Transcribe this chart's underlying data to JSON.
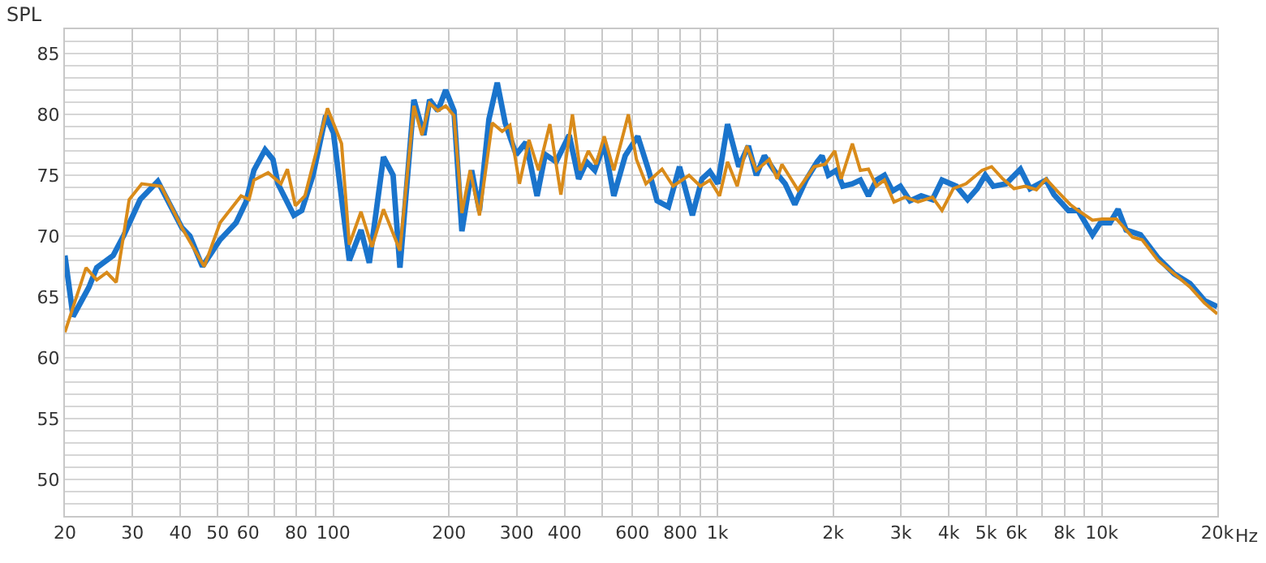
{
  "chart_data": {
    "type": "line",
    "ylabel": "SPL",
    "log": "x",
    "grid": true,
    "marker": "none",
    "line_style": "solid",
    "xlim": [
      20,
      20000
    ],
    "xticks": [
      20,
      30,
      40,
      50,
      60,
      {
        "value": 70,
        "label": null
      },
      80,
      {
        "value": 90,
        "label": null
      },
      100,
      200,
      300,
      400,
      {
        "value": 500,
        "label": null
      },
      600,
      {
        "value": 700,
        "label": null
      },
      800,
      {
        "value": 900,
        "label": null
      },
      {
        "value": 1000,
        "label": "1k"
      },
      {
        "value": 2000,
        "label": "2k"
      },
      {
        "value": 3000,
        "label": "3k"
      },
      {
        "value": 4000,
        "label": "4k"
      },
      {
        "value": 5000,
        "label": "5k"
      },
      {
        "value": 6000,
        "label": "6k"
      },
      {
        "value": 7000,
        "label": null
      },
      {
        "value": 8000,
        "label": "8k"
      },
      {
        "value": 9000,
        "label": null
      },
      {
        "value": 10000,
        "label": "10k"
      },
      {
        "value": 20000,
        "label": "20k"
      }
    ],
    "xlabel": "Hz",
    "ylim": [
      47,
      87
    ],
    "yticks": [
      {
        "value": 48,
        "label": null
      },
      {
        "value": 49,
        "label": null
      },
      50,
      {
        "value": 51,
        "label": null
      },
      {
        "value": 52,
        "label": null
      },
      {
        "value": 53,
        "label": null
      },
      {
        "value": 54,
        "label": null
      },
      55,
      {
        "value": 56,
        "label": null
      },
      {
        "value": 57,
        "label": null
      },
      {
        "value": 58,
        "label": null
      },
      {
        "value": 59,
        "label": null
      },
      60,
      {
        "value": 61,
        "label": null
      },
      {
        "value": 62,
        "label": null
      },
      {
        "value": 63,
        "label": null
      },
      {
        "value": 64,
        "label": null
      },
      65,
      {
        "value": 66,
        "label": null
      },
      {
        "value": 67,
        "label": null
      },
      {
        "value": 68,
        "label": null
      },
      {
        "value": 69,
        "label": null
      },
      70,
      {
        "value": 71,
        "label": null
      },
      {
        "value": 72,
        "label": null
      },
      {
        "value": 73,
        "label": null
      },
      {
        "value": 74,
        "label": null
      },
      75,
      {
        "value": 76,
        "label": null
      },
      {
        "value": 77,
        "label": null
      },
      {
        "value": 78,
        "label": null
      },
      {
        "value": 79,
        "label": null
      },
      80,
      {
        "value": 81,
        "label": null
      },
      {
        "value": 82,
        "label": null
      },
      {
        "value": 83,
        "label": null
      },
      {
        "value": 84,
        "label": null
      },
      85,
      {
        "value": 86,
        "label": null
      },
      {
        "value": 87,
        "label": null
      }
    ],
    "series": [
      {
        "color": "#1a74cc",
        "x": [
          20,
          21.0,
          23.1,
          24.2,
          26.7,
          28.5,
          31.4,
          34.9,
          40.3,
          42.3,
          45.6,
          50.7,
          55.8,
          59.2,
          62.1,
          66.4,
          69.6,
          71.7,
          78.9,
          82.7,
          88.5,
          95.5,
          100,
          110,
          118,
          124,
          135,
          143,
          149,
          162,
          172,
          178,
          187,
          196,
          206,
          216,
          229,
          240,
          254,
          267,
          280,
          299,
          317,
          339,
          356,
          380,
          411,
          435,
          456,
          479,
          507,
          537,
          575,
          620,
          663,
          696,
          745,
          796,
          860,
          911,
          955,
          1002,
          1062,
          1136,
          1203,
          1262,
          1324,
          1403,
          1500,
          1589,
          1699,
          1817,
          1870,
          1943,
          2039,
          2119,
          2244,
          2354,
          2471,
          2593,
          2719,
          2853,
          2992,
          3170,
          3389,
          3626,
          3840,
          4188,
          4477,
          4743,
          4976,
          5220,
          5637,
          6144,
          6510,
          7164,
          7516,
          8196,
          8680,
          9464,
          9931,
          10517,
          11034,
          11577,
          12619,
          14023,
          15435,
          16989,
          18523,
          20000
        ],
        "values": [
          68.4,
          63.4,
          65.8,
          67.4,
          68.4,
          70.1,
          73.0,
          74.5,
          70.7,
          70.0,
          67.5,
          69.7,
          71.1,
          72.8,
          75.4,
          77.1,
          76.3,
          74.3,
          71.7,
          72.1,
          75.0,
          79.9,
          78.5,
          68.0,
          70.5,
          67.8,
          76.5,
          75.0,
          67.4,
          81.2,
          78.3,
          81.2,
          80.3,
          82.0,
          80.3,
          70.4,
          75.4,
          72.1,
          79.6,
          82.6,
          79.3,
          76.7,
          77.7,
          73.3,
          76.7,
          76.1,
          78.3,
          74.7,
          76.1,
          75.4,
          77.6,
          73.3,
          76.6,
          78.2,
          75.3,
          72.9,
          72.4,
          75.7,
          71.7,
          74.7,
          75.3,
          74.3,
          79.2,
          75.7,
          77.4,
          75.0,
          76.6,
          75.4,
          74.3,
          72.6,
          74.6,
          76.1,
          76.6,
          75.0,
          75.4,
          74.1,
          74.3,
          74.6,
          73.3,
          74.6,
          75.0,
          73.7,
          74.1,
          72.9,
          73.3,
          73.0,
          74.6,
          74.1,
          73.0,
          73.9,
          75.0,
          74.1,
          74.3,
          75.5,
          73.9,
          74.6,
          73.4,
          72.1,
          72.1,
          70.1,
          71.1,
          71.1,
          72.2,
          70.5,
          70.1,
          68.2,
          66.9,
          66.1,
          64.7,
          64.2
        ]
      },
      {
        "color": "#d98b1a",
        "x": [
          20,
          22.7,
          24.2,
          25.7,
          27.2,
          29.4,
          31.7,
          35.6,
          40.3,
          46.1,
          50.7,
          57.5,
          60.3,
          62.1,
          67.6,
          73.0,
          75.9,
          79.6,
          84.3,
          96.5,
          105,
          110,
          118,
          126,
          135,
          149,
          162,
          170,
          178,
          187,
          196,
          206,
          216,
          227,
          240,
          259,
          275,
          288,
          305,
          323,
          342,
          366,
          391,
          419,
          439,
          461,
          483,
          507,
          537,
          586,
          615,
          651,
          717,
          766,
          843,
          902,
          955,
          1012,
          1062,
          1125,
          1191,
          1262,
          1363,
          1430,
          1471,
          1619,
          1783,
          1906,
          2019,
          2098,
          2244,
          2354,
          2471,
          2593,
          2719,
          2880,
          3080,
          3326,
          3626,
          3840,
          4108,
          4434,
          4882,
          5170,
          5530,
          5913,
          6325,
          6764,
          7164,
          7663,
          8276,
          8680,
          9464,
          10024,
          10929,
          12030,
          12742,
          14023,
          15435,
          16989,
          18523,
          20000
        ],
        "values": [
          62.1,
          67.4,
          66.4,
          67.0,
          66.2,
          73.0,
          74.3,
          74.1,
          70.7,
          67.5,
          71.1,
          73.3,
          73.0,
          74.6,
          75.2,
          74.3,
          75.5,
          72.5,
          73.3,
          80.5,
          77.6,
          69.3,
          72.0,
          69.1,
          72.2,
          68.8,
          80.7,
          78.3,
          80.9,
          80.3,
          80.7,
          79.9,
          71.9,
          75.4,
          71.7,
          79.3,
          78.6,
          79.1,
          74.3,
          77.9,
          75.4,
          79.2,
          73.4,
          80.0,
          75.4,
          77.0,
          75.9,
          78.2,
          75.4,
          80.0,
          76.3,
          74.3,
          75.5,
          74.1,
          75.0,
          74.1,
          74.6,
          73.3,
          76.1,
          74.1,
          77.4,
          75.4,
          76.3,
          74.7,
          75.9,
          73.8,
          75.7,
          75.9,
          77.0,
          74.7,
          77.6,
          75.4,
          75.5,
          74.1,
          74.6,
          72.8,
          73.2,
          72.8,
          73.2,
          72.1,
          73.9,
          74.3,
          75.4,
          75.7,
          74.7,
          73.9,
          74.1,
          73.8,
          74.7,
          73.7,
          72.6,
          72.1,
          71.3,
          71.4,
          71.4,
          69.9,
          69.7,
          68.0,
          66.9,
          65.8,
          64.5,
          63.6
        ]
      }
    ]
  }
}
